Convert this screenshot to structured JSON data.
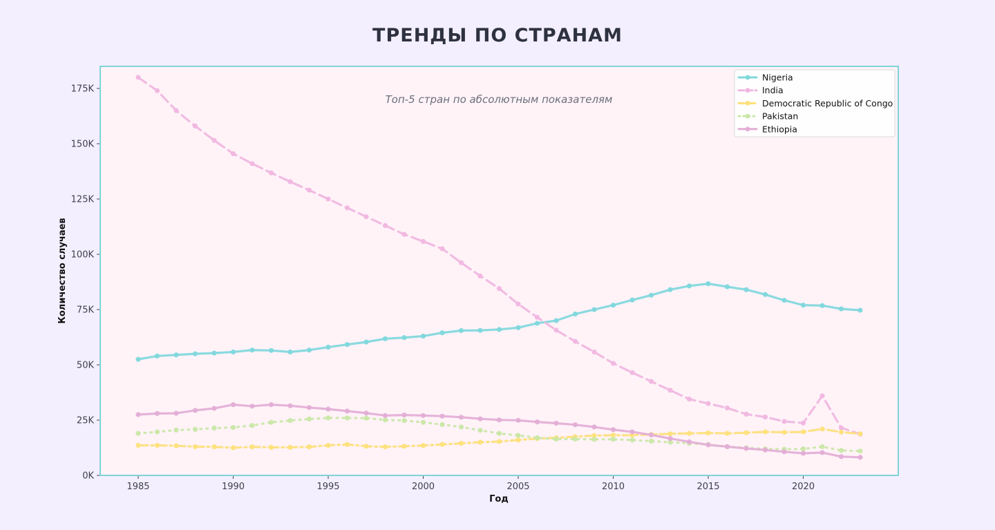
{
  "chart_data": {
    "type": "line",
    "title": "ТРЕНДЫ ПО СТРАНАМ",
    "subtitle": "Топ-5 стран по абсолютным показателям",
    "xlabel": "Год",
    "ylabel": "Количество случаев",
    "xlim": [
      1983,
      2025
    ],
    "ylim": [
      0,
      185000
    ],
    "x_ticks": [
      1985,
      1990,
      1995,
      2000,
      2005,
      2010,
      2015,
      2020
    ],
    "y_ticks": [
      0,
      25000,
      50000,
      75000,
      100000,
      125000,
      150000,
      175000
    ],
    "y_tick_labels": [
      "0K",
      "25K",
      "50K",
      "75K",
      "100K",
      "125K",
      "150K",
      "175K"
    ],
    "legend_position": "top-right",
    "grid": false,
    "colors": {
      "page_background": "#f3efff",
      "plot_background": "#fff3f8",
      "frame": "#7fd4d8"
    },
    "x": [
      1985,
      1986,
      1987,
      1988,
      1989,
      1990,
      1991,
      1992,
      1993,
      1994,
      1995,
      1996,
      1997,
      1998,
      1999,
      2000,
      2001,
      2002,
      2003,
      2004,
      2005,
      2006,
      2007,
      2008,
      2009,
      2010,
      2011,
      2012,
      2013,
      2014,
      2015,
      2016,
      2017,
      2018,
      2019,
      2020,
      2021,
      2022,
      2023
    ],
    "series": [
      {
        "name": "Nigeria",
        "color": "#7fd8dc",
        "dash": "solid",
        "values": [
          52500,
          54000,
          54500,
          55000,
          55300,
          55800,
          56700,
          56500,
          55800,
          56700,
          58000,
          59200,
          60300,
          61800,
          62300,
          63000,
          64500,
          65500,
          65600,
          66000,
          66800,
          68800,
          70000,
          73000,
          75000,
          77000,
          79300,
          81500,
          84000,
          85700,
          86700,
          85300,
          84000,
          81800,
          79200,
          77000,
          76800,
          75300,
          74700
        ]
      },
      {
        "name": "India",
        "color": "#f0b6e0",
        "dash": "dashed",
        "values": [
          180000,
          174000,
          165000,
          158000,
          151500,
          145500,
          141000,
          136800,
          132800,
          129000,
          125000,
          121000,
          117000,
          113000,
          109000,
          105800,
          102500,
          96200,
          90200,
          84500,
          77500,
          71500,
          65700,
          60600,
          55800,
          50700,
          46500,
          42500,
          38500,
          34500,
          32500,
          30500,
          27700,
          26400,
          24400,
          23700,
          36000,
          21500,
          18700
        ]
      },
      {
        "name": "Democratic Republic of Congo",
        "color": "#fde07a",
        "dash": "dashdot",
        "values": [
          13600,
          13600,
          13400,
          13000,
          12900,
          12500,
          12900,
          12700,
          12700,
          12900,
          13600,
          14000,
          13200,
          12900,
          13200,
          13500,
          14000,
          14500,
          15000,
          15300,
          16000,
          16700,
          17000,
          17500,
          18000,
          18200,
          18200,
          18500,
          18800,
          19000,
          19200,
          19000,
          19300,
          19700,
          19500,
          19700,
          21000,
          19600,
          18800
        ]
      },
      {
        "name": "Pakistan",
        "color": "#c9e7a6",
        "dash": "dotted",
        "values": [
          19000,
          19700,
          20500,
          20800,
          21400,
          21700,
          22600,
          24000,
          24800,
          25500,
          26000,
          26000,
          25900,
          25100,
          24800,
          24000,
          23000,
          21900,
          20400,
          19000,
          18100,
          17000,
          16400,
          16400,
          16300,
          16300,
          16000,
          15500,
          15000,
          14500,
          14000,
          13000,
          12500,
          12000,
          11800,
          12000,
          13000,
          11300,
          11000
        ]
      },
      {
        "name": "Ethiopia",
        "color": "#e3aed6",
        "dash": "solid",
        "values": [
          27500,
          28000,
          28100,
          29400,
          30300,
          32000,
          31300,
          32000,
          31500,
          30700,
          30000,
          29100,
          28200,
          27100,
          27300,
          27100,
          26800,
          26300,
          25600,
          25100,
          24900,
          24200,
          23600,
          22900,
          21900,
          20700,
          19700,
          18300,
          16700,
          15200,
          13800,
          13000,
          12200,
          11500,
          10700,
          10000,
          10300,
          8500,
          8200
        ]
      }
    ]
  }
}
